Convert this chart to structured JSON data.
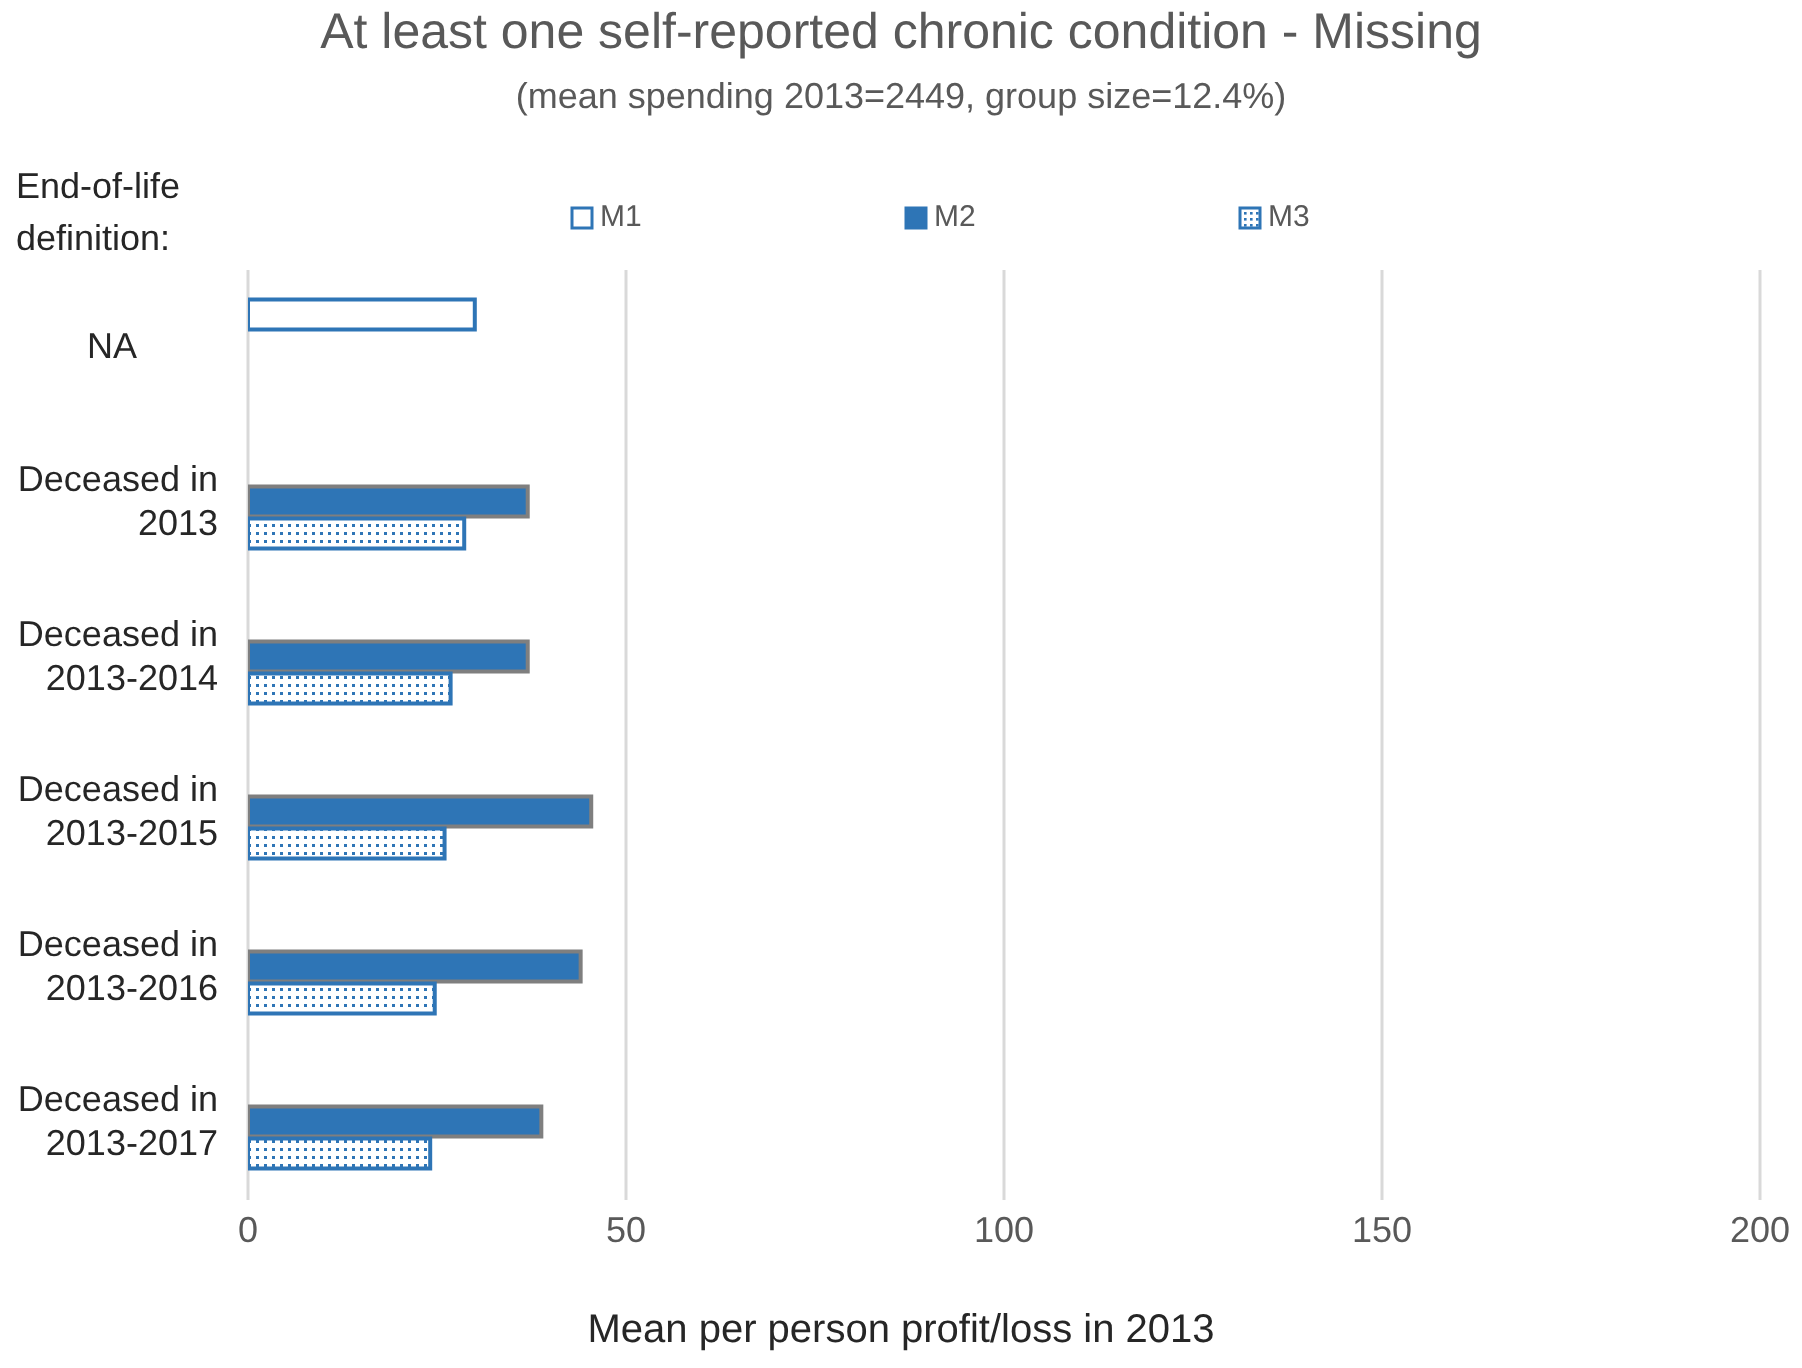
{
  "chart_data": {
    "type": "bar",
    "orientation": "horizontal",
    "title": "At least one self-reported chronic condition - Missing",
    "subtitle": "(mean spending 2013=2449, group size=12.4%)",
    "legend_title": "End-of-life definition:",
    "xlabel": "Mean per person profit/loss in 2013",
    "categories": [
      "NA",
      "Deceased in 2013",
      "Deceased in 2013-2014",
      "Deceased in 2013-2015",
      "Deceased in 2013-2016",
      "Deceased in 2013-2017"
    ],
    "series": [
      {
        "name": "M1",
        "color": "#2e75b6",
        "values": [
          30,
          null,
          null,
          null,
          null,
          null
        ]
      },
      {
        "name": "M2",
        "color": "#2e75b6",
        "values": [
          null,
          37,
          37,
          45.4,
          44,
          38.8
        ]
      },
      {
        "name": "M3",
        "color": "#2e75b6",
        "values": [
          null,
          28.6,
          26.8,
          26,
          24.7,
          24.1
        ]
      }
    ],
    "xlim": [
      0,
      200
    ],
    "xticks": [
      0,
      50,
      100,
      150,
      200
    ],
    "grid": "x",
    "legend": "top"
  }
}
